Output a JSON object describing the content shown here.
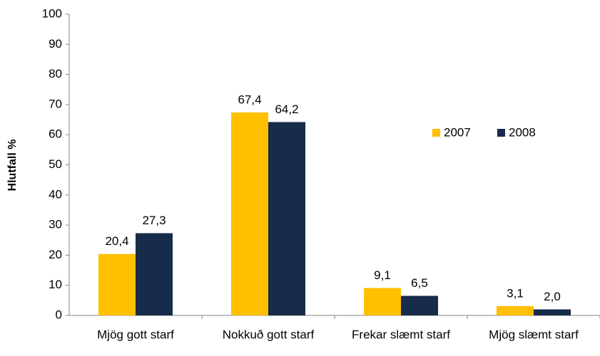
{
  "chart_data": {
    "type": "bar",
    "y_label": "Hlutfall %",
    "categories": [
      "Mjög gott starf",
      "Nokkuð gott starf",
      "Frekar slæmt starf",
      "Mjög slæmt starf"
    ],
    "series": [
      {
        "name": "2007",
        "color": "#ffc000",
        "values": [
          20.4,
          67.4,
          9.1,
          3.1
        ],
        "value_labels": [
          "20,4",
          "67,4",
          "9,1",
          "3,1"
        ]
      },
      {
        "name": "2008",
        "color": "#172b4a",
        "values": [
          27.3,
          64.2,
          6.5,
          2
        ],
        "value_labels": [
          "27,3",
          "64,2",
          "6,5",
          "2,0"
        ]
      }
    ],
    "ylim": [
      0,
      100
    ],
    "yticks": [
      0,
      10,
      20,
      30,
      40,
      50,
      60,
      70,
      80,
      90,
      100
    ],
    "grid": false,
    "legend": "right"
  }
}
